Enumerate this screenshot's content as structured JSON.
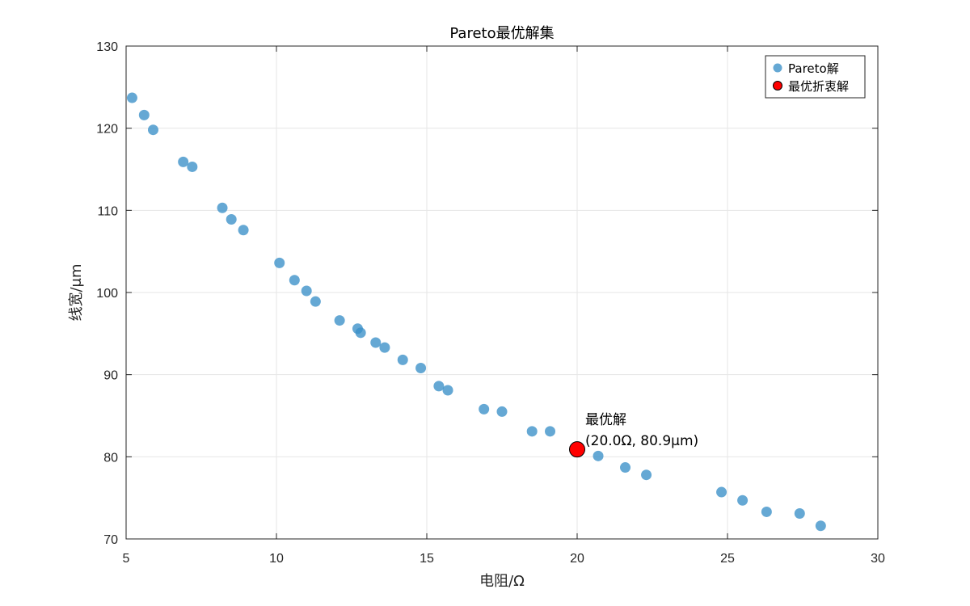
{
  "chart_data": {
    "type": "scatter",
    "title": "Pareto最优解集",
    "xlabel": "电阻/Ω",
    "ylabel": "线宽/μm",
    "xlim": [
      5,
      30
    ],
    "ylim": [
      70,
      130
    ],
    "xticks": [
      5,
      10,
      15,
      20,
      25,
      30
    ],
    "yticks": [
      70,
      80,
      90,
      100,
      110,
      120,
      130
    ],
    "grid": true,
    "legend_position": "top-right",
    "series": [
      {
        "name": "Pareto解",
        "color": "#3a8fc8",
        "marker": "circle-filled",
        "points": [
          {
            "x": 5.2,
            "y": 123.7
          },
          {
            "x": 5.6,
            "y": 121.6
          },
          {
            "x": 5.9,
            "y": 119.8
          },
          {
            "x": 6.9,
            "y": 115.9
          },
          {
            "x": 7.2,
            "y": 115.3
          },
          {
            "x": 8.2,
            "y": 110.3
          },
          {
            "x": 8.5,
            "y": 108.9
          },
          {
            "x": 8.9,
            "y": 107.6
          },
          {
            "x": 10.1,
            "y": 103.6
          },
          {
            "x": 10.6,
            "y": 101.5
          },
          {
            "x": 11.0,
            "y": 100.2
          },
          {
            "x": 11.3,
            "y": 98.9
          },
          {
            "x": 12.1,
            "y": 96.6
          },
          {
            "x": 12.7,
            "y": 95.6
          },
          {
            "x": 12.8,
            "y": 95.1
          },
          {
            "x": 13.3,
            "y": 93.9
          },
          {
            "x": 13.6,
            "y": 93.3
          },
          {
            "x": 14.2,
            "y": 91.8
          },
          {
            "x": 14.8,
            "y": 90.8
          },
          {
            "x": 15.4,
            "y": 88.6
          },
          {
            "x": 15.7,
            "y": 88.1
          },
          {
            "x": 16.9,
            "y": 85.8
          },
          {
            "x": 17.5,
            "y": 85.5
          },
          {
            "x": 18.5,
            "y": 83.1
          },
          {
            "x": 19.1,
            "y": 83.1
          },
          {
            "x": 20.7,
            "y": 80.1
          },
          {
            "x": 21.6,
            "y": 78.7
          },
          {
            "x": 22.3,
            "y": 77.8
          },
          {
            "x": 24.8,
            "y": 75.7
          },
          {
            "x": 25.5,
            "y": 74.7
          },
          {
            "x": 26.3,
            "y": 73.3
          },
          {
            "x": 27.4,
            "y": 73.1
          },
          {
            "x": 28.1,
            "y": 71.6
          }
        ]
      },
      {
        "name": "最优折衷解",
        "color": "#ff0000",
        "marker": "circle-filled-outlined",
        "points": [
          {
            "x": 20.0,
            "y": 80.9
          }
        ]
      }
    ],
    "annotation": {
      "line1": "最优解",
      "line2": "(20.0Ω, 80.9μm)",
      "x": 20.0,
      "y": 80.9
    }
  }
}
